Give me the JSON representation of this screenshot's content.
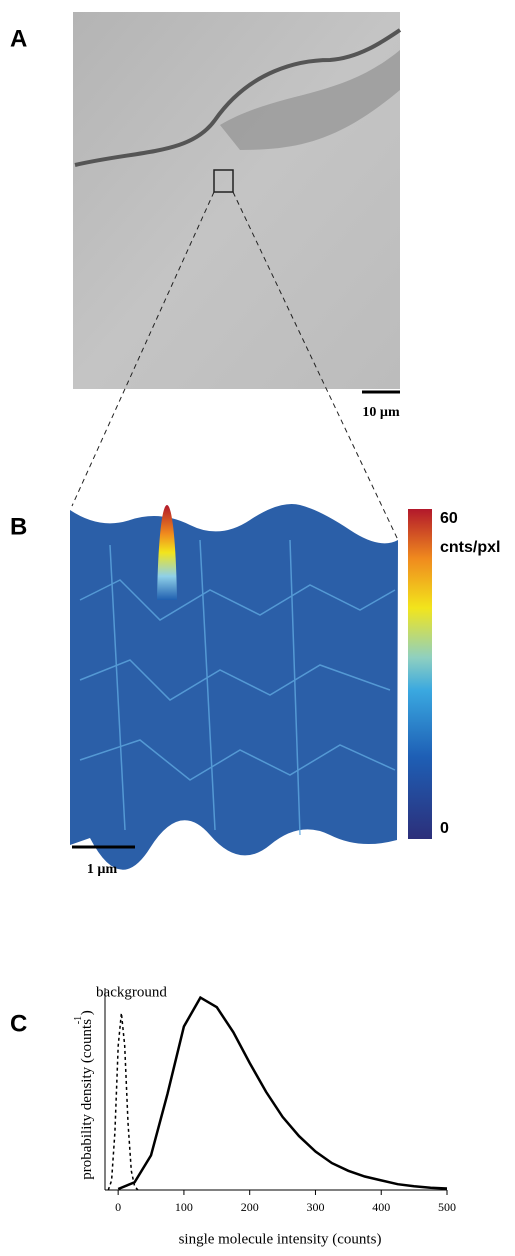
{
  "panels": {
    "a": {
      "label": "A",
      "scale_bar": "10 µm"
    },
    "b": {
      "label": "B",
      "scale_bar": "1 µm",
      "colorbar": {
        "lim": [
          0,
          60
        ],
        "ticks": [
          0,
          60
        ],
        "unit": "cnts/pxl"
      }
    }
  },
  "chart_data": {
    "type": "line",
    "panel_label": "C",
    "xlabel": "single molecule intensity (counts)",
    "ylabel": "probability density (counts  )",
    "ylabel_superscript": "-1",
    "xlim": [
      -20,
      500
    ],
    "xticks": [
      0,
      100,
      200,
      300,
      400,
      500
    ],
    "ylim": [
      0,
      1.05
    ],
    "series": [
      {
        "name": "background",
        "color": "#000000",
        "dashed": true,
        "x": [
          -15,
          -10,
          -5,
          0,
          5,
          10,
          15,
          20,
          25,
          30
        ],
        "values": [
          0,
          0.05,
          0.3,
          0.75,
          0.92,
          0.75,
          0.35,
          0.1,
          0.02,
          0
        ]
      },
      {
        "color": "#000000",
        "dashed": false,
        "x": [
          0,
          25,
          50,
          75,
          100,
          125,
          150,
          175,
          200,
          225,
          250,
          275,
          300,
          325,
          350,
          375,
          400,
          425,
          450,
          475,
          500
        ],
        "values": [
          0.005,
          0.04,
          0.18,
          0.5,
          0.85,
          1.0,
          0.95,
          0.82,
          0.66,
          0.51,
          0.38,
          0.28,
          0.2,
          0.14,
          0.1,
          0.07,
          0.05,
          0.03,
          0.02,
          0.012,
          0.008
        ]
      }
    ]
  }
}
